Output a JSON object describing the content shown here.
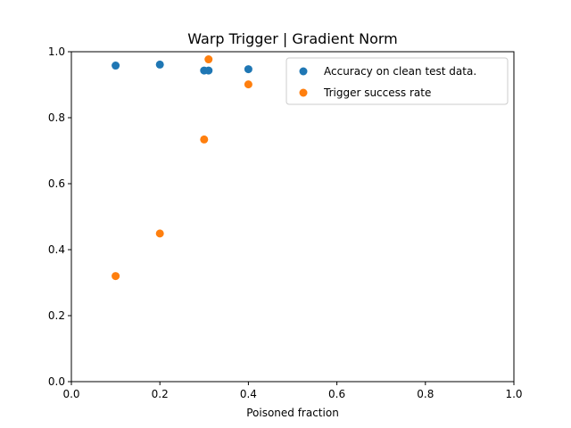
{
  "chart_data": {
    "type": "scatter",
    "title": "Warp Trigger | Gradient Norm",
    "xlabel": "Poisoned fraction",
    "ylabel": "",
    "xlim": [
      0.0,
      1.0
    ],
    "ylim": [
      0.0,
      1.0
    ],
    "xticks": [
      "0.0",
      "0.2",
      "0.4",
      "0.6",
      "0.8",
      "1.0"
    ],
    "yticks": [
      "0.0",
      "0.2",
      "0.4",
      "0.6",
      "0.8",
      "1.0"
    ],
    "grid": false,
    "legend_position": "upper right",
    "series": [
      {
        "name": "Accuracy on clean test data.",
        "color": "#1f77b4",
        "x": [
          0.1,
          0.2,
          0.3,
          0.31,
          0.4
        ],
        "y": [
          0.958,
          0.961,
          0.943,
          0.943,
          0.947
        ]
      },
      {
        "name": "Trigger success rate",
        "color": "#ff7f0e",
        "x": [
          0.1,
          0.2,
          0.3,
          0.31,
          0.4
        ],
        "y": [
          0.32,
          0.449,
          0.734,
          0.977,
          0.901
        ]
      }
    ]
  }
}
